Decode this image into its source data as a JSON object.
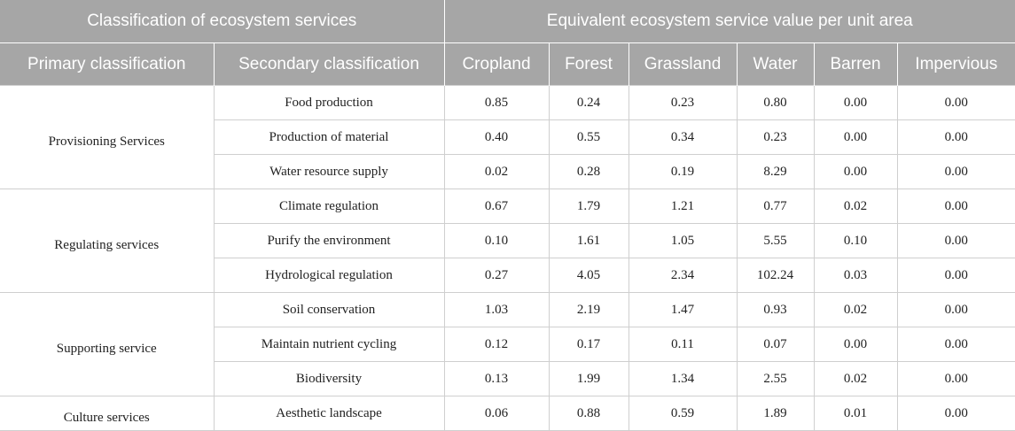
{
  "header": {
    "group_left": "Classification of ecosystem services",
    "group_right": "Equivalent ecosystem service value per unit area",
    "columns": [
      "Primary classification",
      "Secondary classification",
      "Cropland",
      "Forest",
      "Grassland",
      "Water",
      "Barren",
      "Impervious"
    ]
  },
  "groups": [
    {
      "primary": "Provisioning Services",
      "rows": [
        {
          "secondary": "Food production",
          "values": [
            "0.85",
            "0.24",
            "0.23",
            "0.80",
            "0.00",
            "0.00"
          ]
        },
        {
          "secondary": "Production of material",
          "values": [
            "0.40",
            "0.55",
            "0.34",
            "0.23",
            "0.00",
            "0.00"
          ]
        },
        {
          "secondary": "Water resource supply",
          "values": [
            "0.02",
            "0.28",
            "0.19",
            "8.29",
            "0.00",
            "0.00"
          ]
        }
      ]
    },
    {
      "primary": "Regulating services",
      "rows": [
        {
          "secondary": "Climate regulation",
          "values": [
            "0.67",
            "1.79",
            "1.21",
            "0.77",
            "0.02",
            "0.00"
          ]
        },
        {
          "secondary": "Purify the environment",
          "values": [
            "0.10",
            "1.61",
            "1.05",
            "5.55",
            "0.10",
            "0.00"
          ]
        },
        {
          "secondary": "Hydrological regulation",
          "values": [
            "0.27",
            "4.05",
            "2.34",
            "102.24",
            "0.03",
            "0.00"
          ]
        }
      ]
    },
    {
      "primary": "Supporting service",
      "rows": [
        {
          "secondary": "Soil conservation",
          "values": [
            "1.03",
            "2.19",
            "1.47",
            "0.93",
            "0.02",
            "0.00"
          ]
        },
        {
          "secondary": "Maintain nutrient cycling",
          "values": [
            "0.12",
            "0.17",
            "0.11",
            "0.07",
            "0.00",
            "0.00"
          ]
        },
        {
          "secondary": "Biodiversity",
          "values": [
            "0.13",
            "1.99",
            "1.34",
            "2.55",
            "0.02",
            "0.00"
          ]
        }
      ]
    },
    {
      "primary": "Culture services",
      "rows": [
        {
          "secondary": "Aesthetic landscape",
          "values": [
            "0.06",
            "0.88",
            "0.59",
            "1.89",
            "0.01",
            "0.00"
          ]
        }
      ]
    }
  ]
}
